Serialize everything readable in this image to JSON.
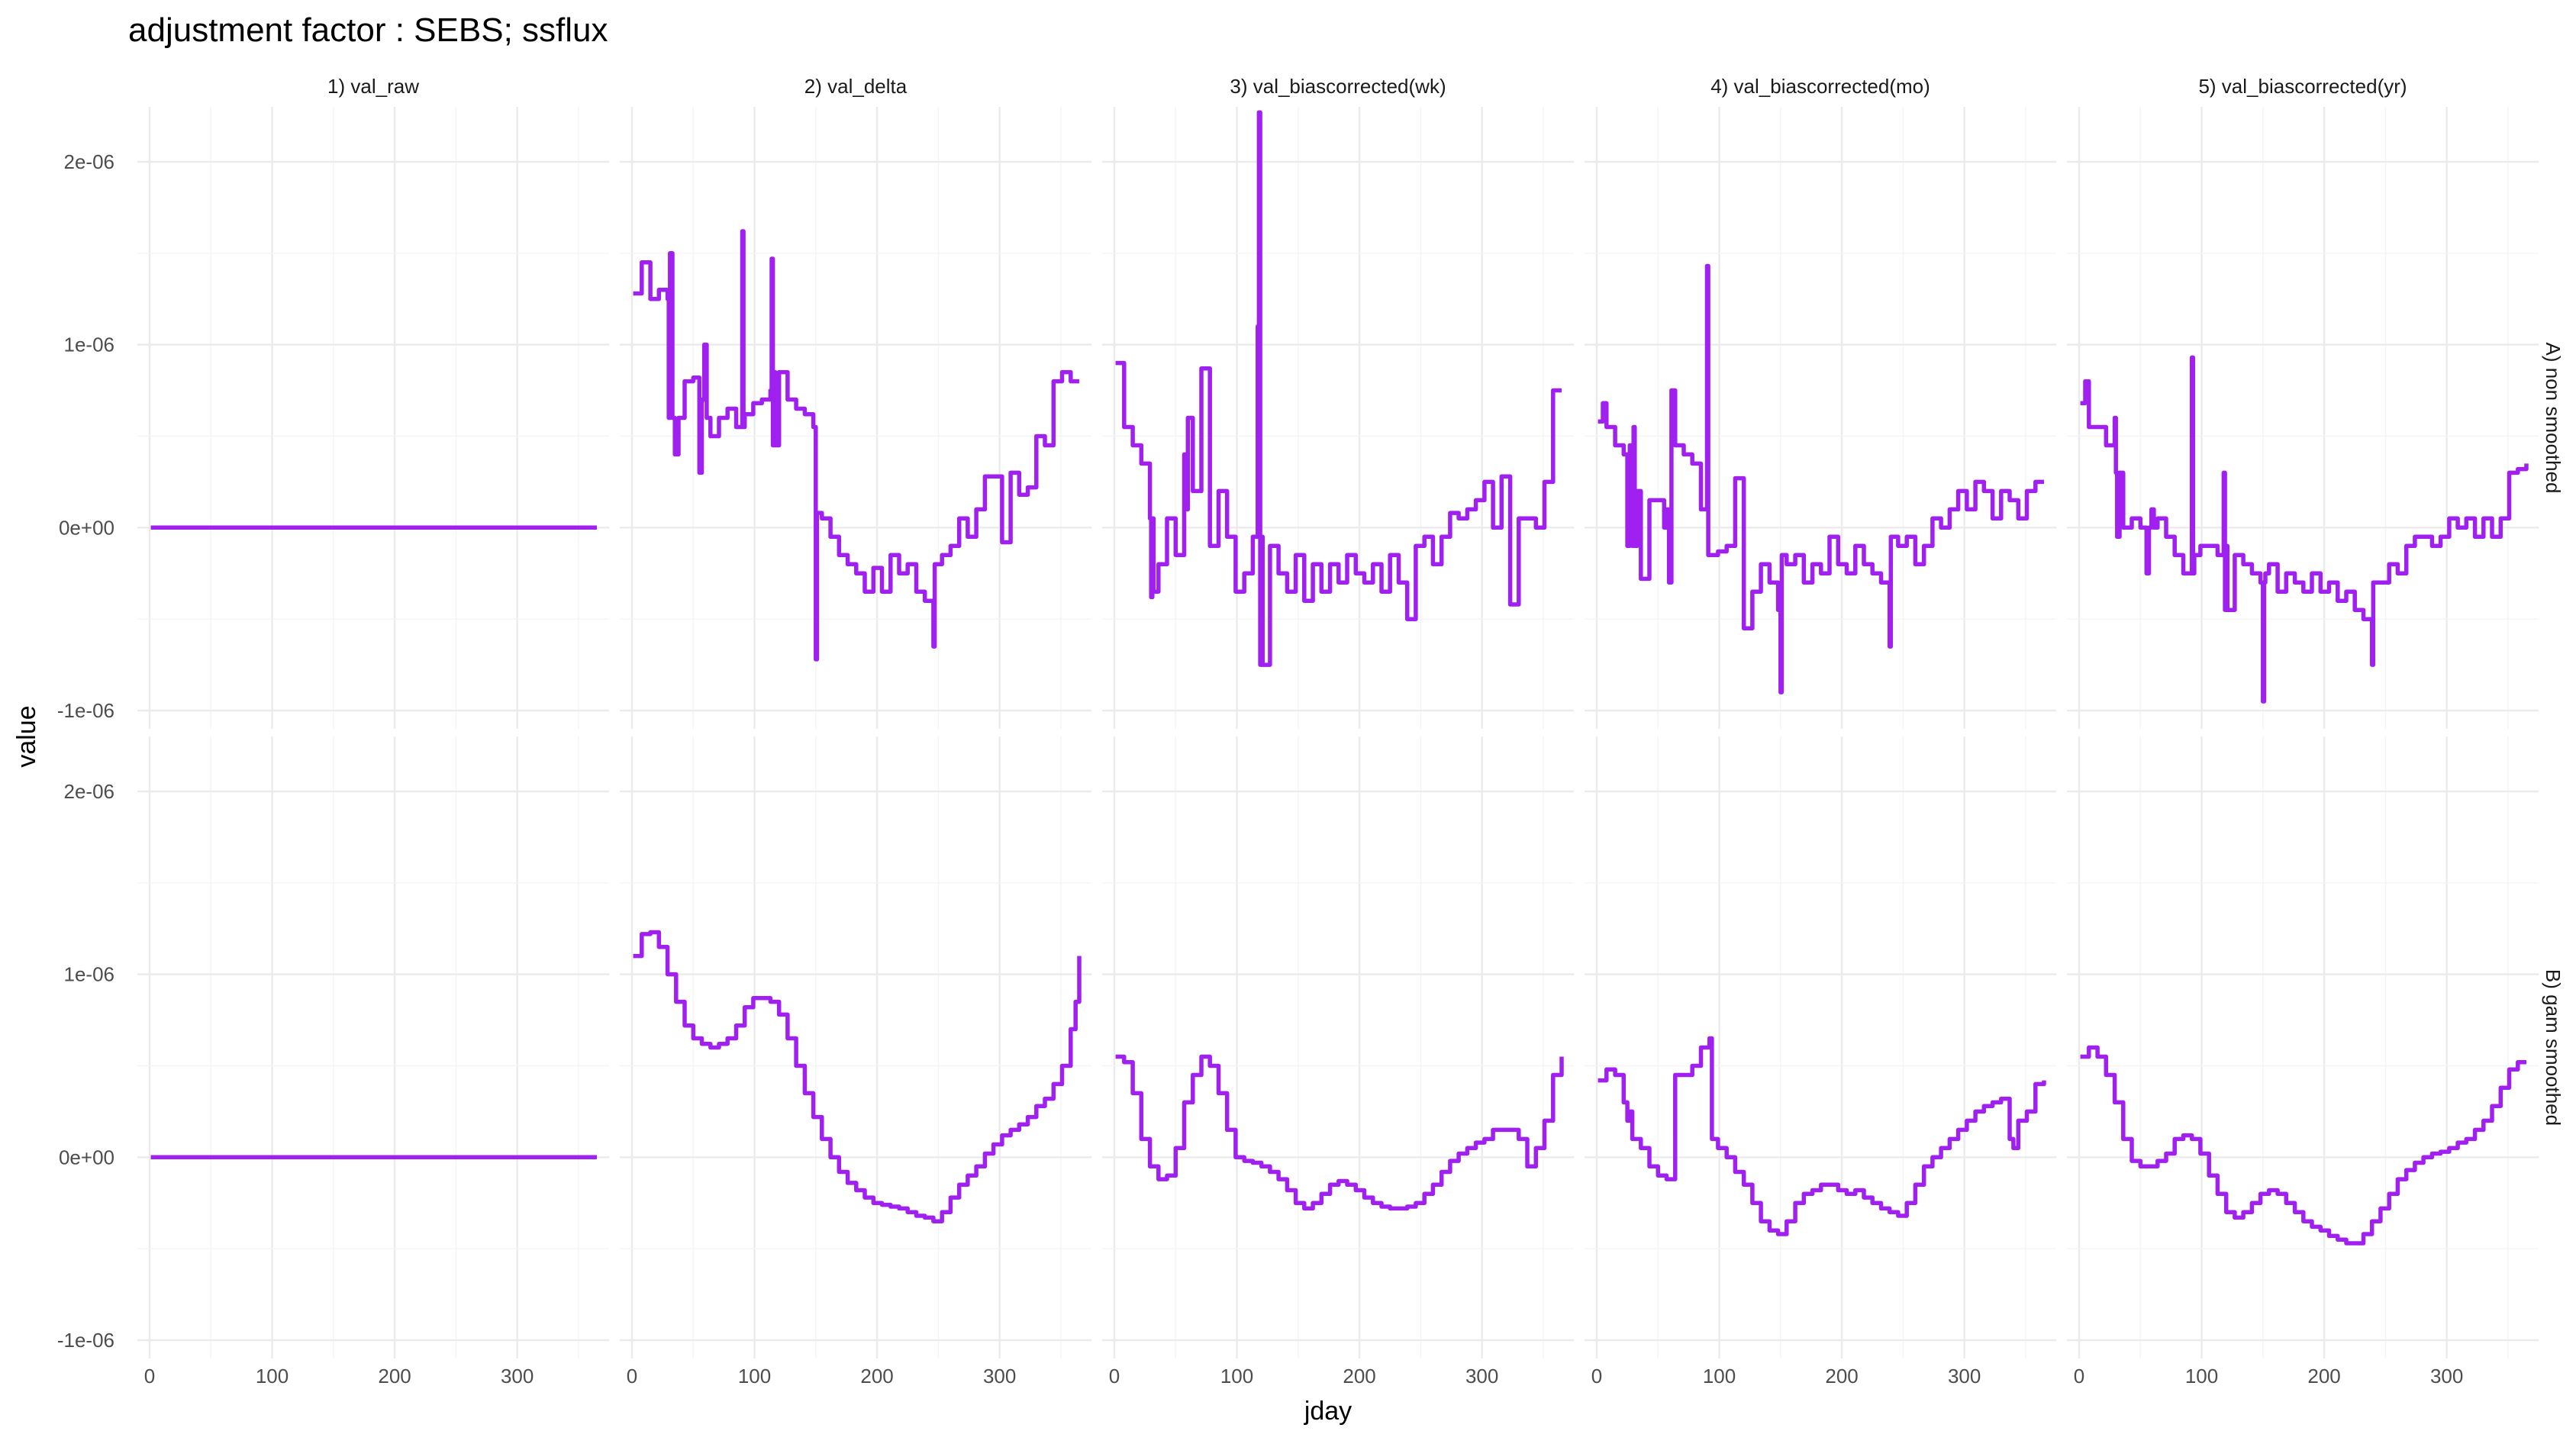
{
  "chart_data": {
    "type": "line",
    "title": "adjustment factor : SEBS; ssflux",
    "xlabel": "jday",
    "ylabel": "value",
    "xlim": [
      0,
      365
    ],
    "ylim": [
      -1.1e-06,
      2.3e-06
    ],
    "x_ticks": [
      0,
      100,
      200,
      300
    ],
    "x_tick_labels": [
      "0",
      "100",
      "200",
      "300"
    ],
    "y_ticks": [
      -1e-06,
      0,
      1e-06,
      2e-06
    ],
    "y_tick_labels": [
      "-1e-06",
      "0e+00",
      "1e-06",
      "2e-06"
    ],
    "columns": [
      "1) val_raw",
      "2) val_delta",
      "3) val_biascorrected(wk)",
      "4) val_biascorrected(mo)",
      "5) val_biascorrected(yr)"
    ],
    "rows": [
      "A) non smoothed",
      "B) gam smoothed"
    ],
    "line_color": "#A020F0",
    "step": true,
    "grid": true,
    "panels": [
      {
        "row": 0,
        "col": 0,
        "x": [
          1,
          365
        ],
        "values": [
          0,
          0
        ]
      },
      {
        "row": 0,
        "col": 1,
        "x": [
          1,
          8,
          15,
          22,
          29,
          30,
          31,
          33,
          35,
          38,
          43,
          50,
          55,
          57,
          59,
          61,
          64,
          71,
          78,
          85,
          90,
          91,
          92,
          99,
          106,
          113,
          114,
          115,
          116,
          117,
          120,
          127,
          134,
          141,
          148,
          150,
          151,
          152,
          155,
          162,
          169,
          176,
          183,
          190,
          197,
          204,
          211,
          218,
          225,
          232,
          239,
          246,
          247,
          253,
          260,
          267,
          274,
          281,
          288,
          295,
          302,
          309,
          316,
          323,
          330,
          337,
          344,
          351,
          358,
          365
        ],
        "values": [
          1.28e-06,
          1.45e-06,
          1.25e-06,
          1.3e-06,
          1.25e-06,
          6e-07,
          1.5e-06,
          6e-07,
          4e-07,
          6e-07,
          8e-07,
          8.2e-07,
          3e-07,
          7e-07,
          1e-06,
          6e-07,
          5e-07,
          6e-07,
          6.5e-07,
          5.5e-07,
          1.62e-06,
          5.5e-07,
          6.2e-07,
          6.8e-07,
          7e-07,
          7.5e-07,
          1.47e-06,
          4.5e-07,
          8.5e-07,
          4.5e-07,
          8.5e-07,
          7e-07,
          6.5e-07,
          6.2e-07,
          5.5e-07,
          -7.2e-07,
          8e-08,
          8e-08,
          5e-08,
          -5e-08,
          -1.5e-07,
          -2e-07,
          -2.5e-07,
          -3.5e-07,
          -2.2e-07,
          -3.5e-07,
          -1.5e-07,
          -2.5e-07,
          -2e-07,
          -3.5e-07,
          -4e-07,
          -6.5e-07,
          -2e-07,
          -1.5e-07,
          -1e-07,
          5e-08,
          -5e-08,
          1e-07,
          2.8e-07,
          2.8e-07,
          -8e-08,
          3e-07,
          1.8e-07,
          2.2e-07,
          5e-07,
          4.5e-07,
          8e-07,
          8.5e-07,
          8e-07,
          8e-07
        ]
      },
      {
        "row": 0,
        "col": 2,
        "x": [
          1,
          8,
          15,
          22,
          29,
          30,
          31,
          32,
          36,
          43,
          50,
          57,
          59,
          60,
          64,
          71,
          78,
          85,
          92,
          99,
          106,
          113,
          117,
          118,
          119,
          120,
          121,
          127,
          134,
          141,
          148,
          155,
          162,
          169,
          176,
          183,
          190,
          197,
          204,
          211,
          218,
          225,
          232,
          239,
          246,
          253,
          260,
          267,
          274,
          281,
          288,
          295,
          302,
          309,
          316,
          318,
          323,
          330,
          337,
          344,
          351,
          358,
          365
        ],
        "values": [
          9e-07,
          5.5e-07,
          4.5e-07,
          3.5e-07,
          5e-08,
          -3.8e-07,
          5e-08,
          -3.5e-07,
          -2e-07,
          5e-08,
          -1.5e-07,
          4e-07,
          1e-07,
          6e-07,
          2e-07,
          8.7e-07,
          -1e-07,
          2e-07,
          -5e-08,
          -3.5e-07,
          -2.5e-07,
          -5e-08,
          1.1e-06,
          2.27e-06,
          -7.5e-07,
          -5e-08,
          -7.5e-07,
          -1e-07,
          -2.5e-07,
          -3.5e-07,
          -1.5e-07,
          -4e-07,
          -2e-07,
          -3.5e-07,
          -2e-07,
          -3e-07,
          -1.5e-07,
          -2.5e-07,
          -3e-07,
          -2e-07,
          -3.5e-07,
          -1.5e-07,
          -3e-07,
          -5e-07,
          -1e-07,
          -5e-08,
          -2e-07,
          -5e-08,
          8e-08,
          5e-08,
          1e-07,
          1.5e-07,
          2.5e-07,
          0.0,
          2.8e-07,
          2.8e-07,
          -4.2e-07,
          5e-08,
          5e-08,
          0.0,
          2.5e-07,
          7.5e-07,
          7.5e-07
        ]
      },
      {
        "row": 0,
        "col": 3,
        "x": [
          1,
          5,
          8,
          15,
          22,
          25,
          27,
          29,
          30,
          31,
          33,
          36,
          43,
          50,
          55,
          57,
          59,
          61,
          64,
          71,
          78,
          85,
          90,
          91,
          92,
          99,
          106,
          113,
          120,
          127,
          134,
          141,
          148,
          150,
          151,
          155,
          162,
          169,
          176,
          183,
          190,
          197,
          204,
          211,
          218,
          225,
          232,
          239,
          240,
          246,
          253,
          260,
          267,
          274,
          281,
          288,
          295,
          302,
          309,
          316,
          323,
          330,
          337,
          344,
          351,
          358,
          365
        ],
        "values": [
          5.8e-07,
          6.8e-07,
          5.5e-07,
          4.5e-07,
          4e-07,
          -1e-07,
          4.5e-07,
          -1e-07,
          5.5e-07,
          -1e-07,
          2e-07,
          -2.8e-07,
          1.5e-07,
          1.5e-07,
          0.0,
          1e-07,
          -3e-07,
          7.5e-07,
          4.5e-07,
          4e-07,
          3.5e-07,
          1e-07,
          1.43e-06,
          -1.5e-07,
          -1.5e-07,
          -1.3e-07,
          -1e-07,
          2.7e-07,
          -5.5e-07,
          -3.5e-07,
          -2e-07,
          -3e-07,
          -4.5e-07,
          -9e-07,
          -1.5e-07,
          -2e-07,
          -1.5e-07,
          -3e-07,
          -2e-07,
          -2.5e-07,
          -5e-08,
          -2e-07,
          -2.5e-07,
          -1e-07,
          -2e-07,
          -2.5e-07,
          -3e-07,
          -6.5e-07,
          -5e-08,
          -1e-07,
          -5e-08,
          -2e-07,
          -1e-07,
          5e-08,
          0.0,
          1e-07,
          2e-07,
          1e-07,
          2.5e-07,
          2e-07,
          5e-08,
          2e-07,
          1.5e-07,
          5e-08,
          2e-07,
          2.5e-07,
          2.5e-07
        ]
      },
      {
        "row": 0,
        "col": 4,
        "x": [
          1,
          5,
          8,
          15,
          22,
          29,
          30,
          31,
          33,
          36,
          43,
          50,
          55,
          57,
          59,
          61,
          64,
          71,
          78,
          85,
          92,
          93,
          94,
          99,
          106,
          113,
          118,
          119,
          120,
          121,
          127,
          134,
          141,
          148,
          150,
          151,
          152,
          155,
          162,
          169,
          176,
          183,
          190,
          197,
          204,
          211,
          218,
          225,
          232,
          239,
          240,
          246,
          253,
          260,
          267,
          274,
          281,
          288,
          295,
          302,
          309,
          316,
          323,
          330,
          337,
          344,
          351,
          358,
          365
        ],
        "values": [
          6.8e-07,
          8e-07,
          5.5e-07,
          5.5e-07,
          4.5e-07,
          6e-07,
          3e-07,
          -5e-08,
          3e-07,
          0.0,
          5e-08,
          0.0,
          -2.5e-07,
          0.0,
          1e-07,
          0.0,
          5e-08,
          -5e-08,
          -1.5e-07,
          -2.5e-07,
          9.3e-07,
          -2.5e-07,
          -1.5e-07,
          -1e-07,
          -1e-07,
          -1.5e-07,
          3e-07,
          -4.5e-07,
          -1e-07,
          -4.5e-07,
          -1.5e-07,
          -2e-07,
          -2.5e-07,
          -3e-07,
          -9.5e-07,
          -3e-07,
          -2.5e-07,
          -2e-07,
          -3.5e-07,
          -2.5e-07,
          -3e-07,
          -3.5e-07,
          -2.5e-07,
          -3.5e-07,
          -3e-07,
          -4e-07,
          -3.5e-07,
          -4.5e-07,
          -5e-07,
          -7.5e-07,
          -3e-07,
          -3e-07,
          -2e-07,
          -2.5e-07,
          -1e-07,
          -5e-08,
          -5e-08,
          -1e-07,
          -5e-08,
          5e-08,
          0.0,
          5e-08,
          -5e-08,
          5e-08,
          -5e-08,
          5e-08,
          3e-07,
          3.2e-07,
          3.5e-07
        ]
      },
      {
        "row": 1,
        "col": 0,
        "x": [
          1,
          365
        ],
        "values": [
          0,
          0
        ]
      },
      {
        "row": 1,
        "col": 1,
        "x": [
          1,
          8,
          15,
          22,
          29,
          36,
          43,
          50,
          57,
          64,
          71,
          78,
          85,
          92,
          99,
          106,
          113,
          120,
          127,
          134,
          141,
          148,
          155,
          162,
          169,
          176,
          183,
          190,
          197,
          204,
          211,
          218,
          225,
          232,
          239,
          246,
          253,
          260,
          267,
          274,
          281,
          288,
          295,
          302,
          309,
          316,
          323,
          330,
          337,
          344,
          351,
          358,
          362,
          365
        ],
        "values": [
          1.1e-06,
          1.22e-06,
          1.23e-06,
          1.15e-06,
          1e-06,
          8.5e-07,
          7.2e-07,
          6.5e-07,
          6.2e-07,
          6e-07,
          6.2e-07,
          6.5e-07,
          7.2e-07,
          8.2e-07,
          8.7e-07,
          8.7e-07,
          8.5e-07,
          7.8e-07,
          6.5e-07,
          5e-07,
          3.5e-07,
          2.2e-07,
          1e-07,
          0.0,
          -8e-08,
          -1.4e-07,
          -1.8e-07,
          -2.2e-07,
          -2.5e-07,
          -2.6e-07,
          -2.7e-07,
          -2.8e-07,
          -3e-07,
          -3.2e-07,
          -3.3e-07,
          -3.5e-07,
          -3e-07,
          -2.2e-07,
          -1.5e-07,
          -1e-07,
          -5e-08,
          2e-08,
          7e-08,
          1.2e-07,
          1.5e-07,
          1.8e-07,
          2.2e-07,
          2.8e-07,
          3.2e-07,
          4e-07,
          5e-07,
          7e-07,
          8.5e-07,
          1.1e-06
        ]
      },
      {
        "row": 1,
        "col": 2,
        "x": [
          1,
          8,
          15,
          22,
          29,
          36,
          43,
          50,
          57,
          64,
          71,
          78,
          85,
          92,
          99,
          106,
          113,
          120,
          127,
          134,
          141,
          148,
          155,
          162,
          169,
          176,
          183,
          190,
          197,
          204,
          211,
          218,
          225,
          232,
          239,
          246,
          253,
          260,
          267,
          274,
          281,
          288,
          295,
          302,
          309,
          316,
          323,
          330,
          337,
          344,
          351,
          358,
          365
        ],
        "values": [
          5.5e-07,
          5.2e-07,
          3.5e-07,
          1e-07,
          -5e-08,
          -1.2e-07,
          -1e-07,
          5e-08,
          3e-07,
          4.5e-07,
          5.5e-07,
          5e-07,
          3.5e-07,
          1.5e-07,
          0.0,
          -2e-08,
          -3e-08,
          -5e-08,
          -8e-08,
          -1.2e-07,
          -1.8e-07,
          -2.5e-07,
          -2.8e-07,
          -2.5e-07,
          -2e-07,
          -1.5e-07,
          -1.3e-07,
          -1.5e-07,
          -1.8e-07,
          -2.2e-07,
          -2.5e-07,
          -2.7e-07,
          -2.8e-07,
          -2.8e-07,
          -2.7e-07,
          -2.5e-07,
          -2e-07,
          -1.5e-07,
          -8e-08,
          -2e-08,
          2e-08,
          5e-08,
          8e-08,
          1e-07,
          1.5e-07,
          1.5e-07,
          1.5e-07,
          1e-07,
          -5e-08,
          5e-08,
          2e-07,
          4.5e-07,
          5.5e-07
        ]
      },
      {
        "row": 1,
        "col": 3,
        "x": [
          1,
          8,
          15,
          22,
          25,
          27,
          29,
          36,
          43,
          50,
          57,
          64,
          71,
          78,
          85,
          92,
          94,
          99,
          106,
          113,
          120,
          127,
          134,
          141,
          148,
          155,
          162,
          169,
          176,
          183,
          190,
          197,
          204,
          211,
          218,
          225,
          232,
          239,
          246,
          253,
          260,
          267,
          274,
          281,
          288,
          295,
          302,
          309,
          316,
          323,
          330,
          337,
          340,
          344,
          351,
          358,
          365
        ],
        "values": [
          4.2e-07,
          4.8e-07,
          4.5e-07,
          3e-07,
          2e-07,
          2.5e-07,
          1e-07,
          5e-08,
          -5e-08,
          -1e-07,
          -1.2e-07,
          4.5e-07,
          4.5e-07,
          5e-07,
          6e-07,
          6.5e-07,
          1e-07,
          5e-08,
          0.0,
          -8e-08,
          -1.5e-07,
          -2.5e-07,
          -3.5e-07,
          -4e-07,
          -4.2e-07,
          -3.5e-07,
          -2.5e-07,
          -2e-07,
          -1.8e-07,
          -1.5e-07,
          -1.5e-07,
          -1.8e-07,
          -2e-07,
          -1.8e-07,
          -2.2e-07,
          -2.5e-07,
          -2.8e-07,
          -3e-07,
          -3.2e-07,
          -2.5e-07,
          -1.5e-07,
          -5e-08,
          0.0,
          5e-08,
          1e-07,
          1.5e-07,
          2e-07,
          2.5e-07,
          2.8e-07,
          3e-07,
          3.2e-07,
          1e-07,
          5e-08,
          2e-07,
          2.5e-07,
          4e-07,
          4.2e-07
        ]
      },
      {
        "row": 1,
        "col": 4,
        "x": [
          1,
          8,
          15,
          22,
          29,
          36,
          43,
          50,
          57,
          64,
          71,
          78,
          85,
          92,
          99,
          106,
          113,
          120,
          127,
          134,
          141,
          148,
          155,
          162,
          169,
          176,
          183,
          190,
          197,
          204,
          211,
          218,
          225,
          232,
          239,
          246,
          253,
          260,
          267,
          274,
          281,
          288,
          295,
          302,
          309,
          316,
          323,
          330,
          337,
          344,
          351,
          358,
          365
        ],
        "values": [
          5.5e-07,
          6e-07,
          5.5e-07,
          4.5e-07,
          3e-07,
          1e-07,
          -2e-08,
          -5e-08,
          -5e-08,
          -2e-08,
          2e-08,
          1e-07,
          1.2e-07,
          1e-07,
          2e-08,
          -1e-07,
          -2e-07,
          -3e-07,
          -3.3e-07,
          -3e-07,
          -2.5e-07,
          -2e-07,
          -1.8e-07,
          -2e-07,
          -2.5e-07,
          -3e-07,
          -3.5e-07,
          -3.8e-07,
          -4e-07,
          -4.3e-07,
          -4.5e-07,
          -4.7e-07,
          -4.7e-07,
          -4.2e-07,
          -3.5e-07,
          -2.8e-07,
          -2e-07,
          -1.2e-07,
          -7e-08,
          -3e-08,
          0.0,
          2e-08,
          3e-08,
          5e-08,
          8e-08,
          1e-07,
          1.5e-07,
          2e-07,
          2.8e-07,
          3.8e-07,
          4.8e-07,
          5.2e-07,
          5.2e-07
        ]
      }
    ]
  }
}
